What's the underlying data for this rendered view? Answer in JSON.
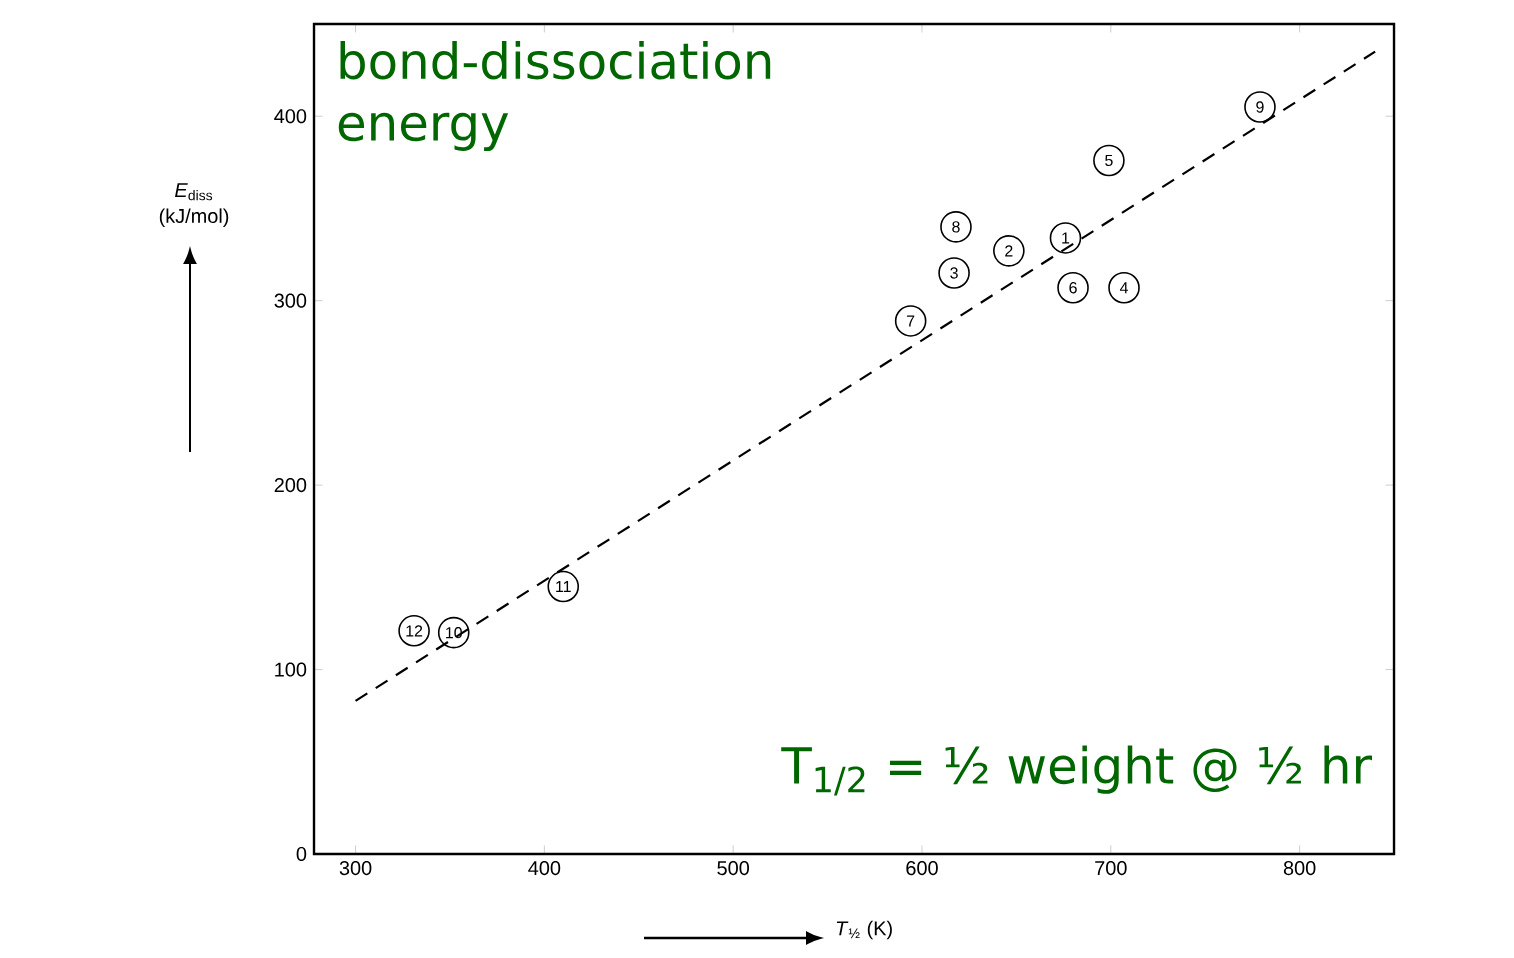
{
  "chart_data": {
    "type": "scatter",
    "xlabel": "*T*$_{½}$ (K)",
    "ylabel": "*E*$_{diss}$ (kJ/mol)",
    "annotations": [
      "bond-dissociation energy",
      "T$_{1/2}$ = ½ weight @ ½ hr",
      {
        "text": "1",
        "x": 676,
        "y": 334
      },
      {
        "text": "2",
        "x": 646,
        "y": 327
      },
      {
        "text": "3",
        "x": 617,
        "y": 315
      },
      {
        "text": "4",
        "x": 707,
        "y": 307
      },
      {
        "text": "5",
        "x": 699,
        "y": 376
      },
      {
        "text": "6",
        "x": 680,
        "y": 307
      },
      {
        "text": "7",
        "x": 594,
        "y": 289
      },
      {
        "text": "8",
        "x": 618,
        "y": 340
      },
      {
        "text": "9",
        "x": 779,
        "y": 405
      },
      {
        "text": "10",
        "x": 352,
        "y": 120
      },
      {
        "text": "11",
        "x": 410,
        "y": 145
      },
      {
        "text": "12",
        "x": 331,
        "y": 121
      }
    ],
    "xlim": [
      278,
      850
    ],
    "ylim": [
      0,
      450
    ],
    "xticks": [
      300,
      400,
      500,
      600,
      700,
      800
    ],
    "yticks": [
      0,
      100,
      200,
      300,
      400
    ],
    "series": [
      {
        "type": "scatter",
        "color": "#000000",
        "marker": "circle",
        "x": [
          676,
          646,
          617,
          707,
          699,
          680,
          594,
          618,
          779,
          352,
          410,
          331
        ],
        "values": [
          334,
          327,
          315,
          307,
          376,
          307,
          289,
          340,
          405,
          120,
          145,
          121
        ]
      },
      {
        "type": "line",
        "color": "#000000",
        "line_style": "dashed",
        "marker": "none",
        "x": [
          300,
          840
        ],
        "values": [
          83,
          435
        ]
      }
    ]
  }
}
